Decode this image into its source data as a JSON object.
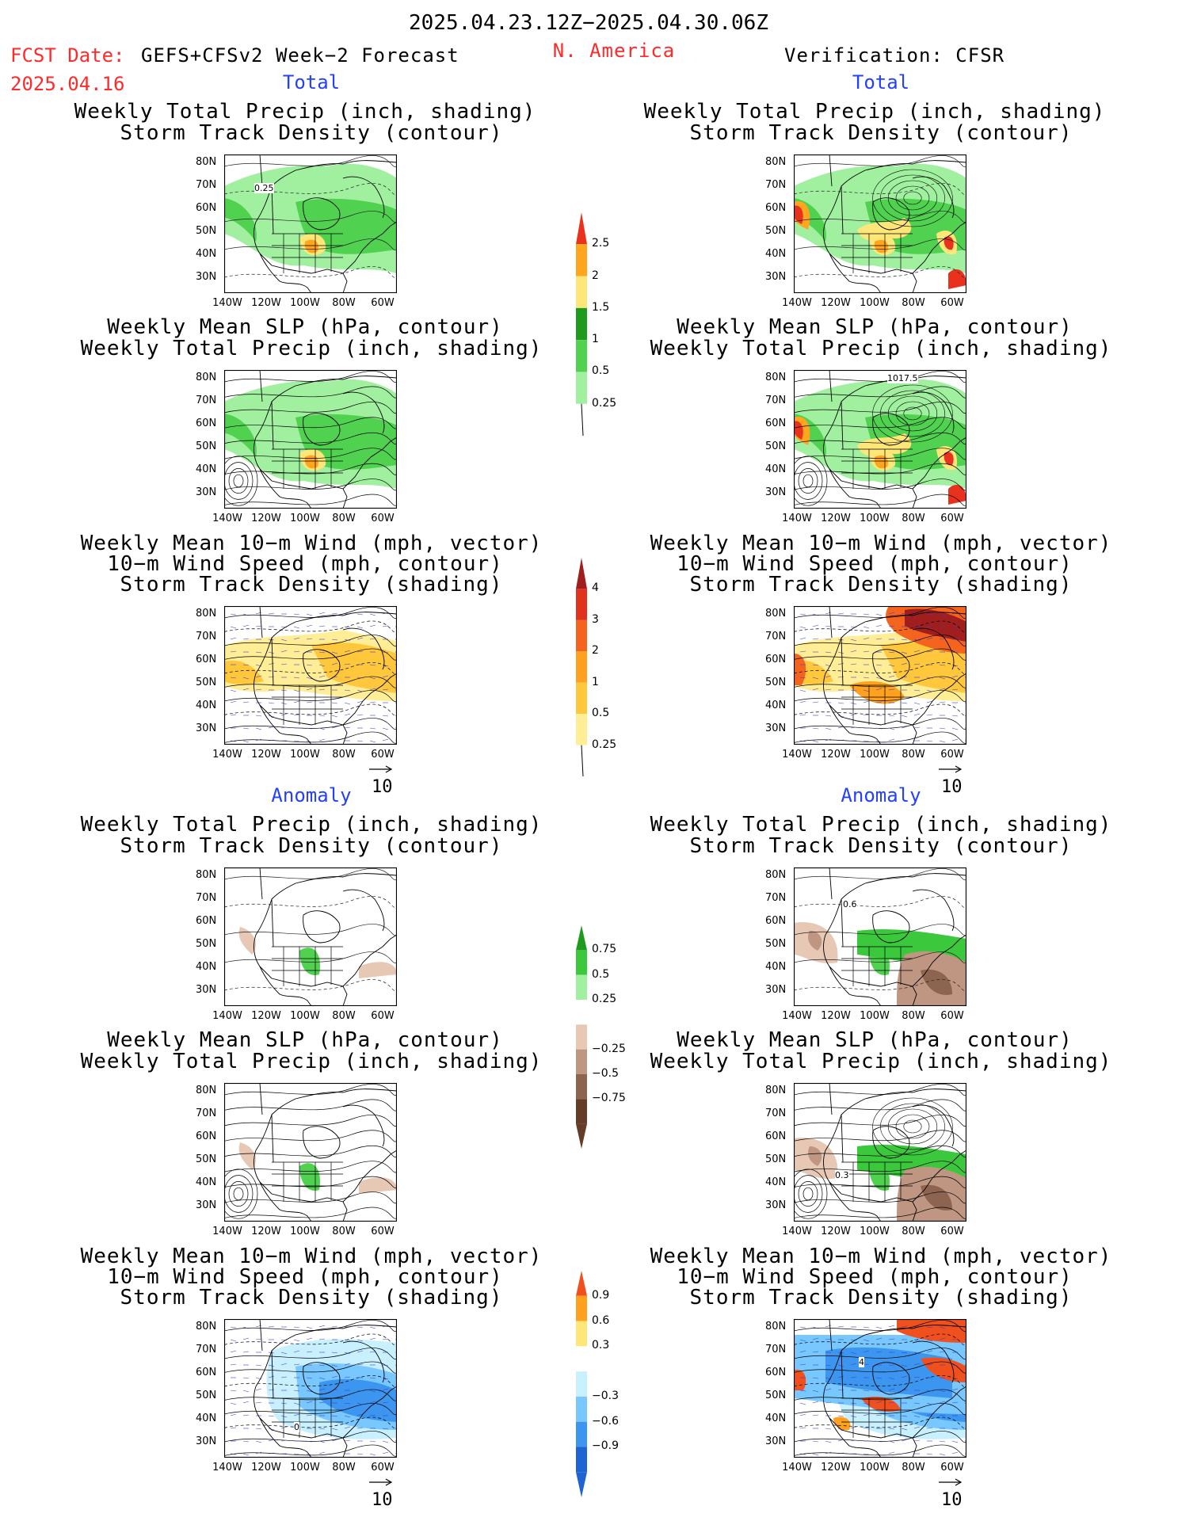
{
  "header": {
    "date_range": "2025.04.23.12Z−2025.04.30.06Z",
    "fcst_label": "FCST Date:",
    "fcst_model": "GEFS+CFSv2 Week−2 Forecast",
    "fcst_date": "2025.04.16",
    "region": "N. America",
    "verification": "Verification: CFSR"
  },
  "sections": {
    "total": "Total",
    "anomaly": "Anomaly"
  },
  "titles": {
    "precip_storm": [
      "Weekly Total Precip (inch, shading)",
      "Storm Track Density (contour)"
    ],
    "slp_precip": [
      "Weekly Mean SLP (hPa, contour)",
      "Weekly Total Precip (inch, shading)"
    ],
    "wind_storm": [
      "Weekly Mean 10−m Wind (mph, vector)",
      "10−m Wind Speed (mph, contour)",
      "Storm Track Density (shading)"
    ]
  },
  "axes": {
    "lat": [
      "80N",
      "70N",
      "60N",
      "50N",
      "40N",
      "30N"
    ],
    "lon": [
      "140W",
      "120W",
      "100W",
      "80W",
      "60W"
    ]
  },
  "vector_ref": "10",
  "colorbars": {
    "precip_total": {
      "labels": [
        "2.5",
        "2",
        "1.5",
        "1",
        "0.5",
        "0.25"
      ],
      "colors": [
        "#e8321e",
        "#ffa51e",
        "#ffe678",
        "#1e9b1e",
        "#50d250",
        "#a0f0a0"
      ]
    },
    "storm_total": {
      "labels": [
        "4",
        "3",
        "2",
        "1",
        "0.5",
        "0.25"
      ],
      "colors": [
        "#a01e1e",
        "#e1321e",
        "#f5641e",
        "#ffa01e",
        "#ffc83c",
        "#ffee96"
      ]
    },
    "precip_anom": {
      "labels": [
        "0.75",
        "0.5",
        "0.25",
        "−0.25",
        "−0.5",
        "−0.75"
      ],
      "colors": [
        "#1e9b1e",
        "#3cc83c",
        "#a0f0a0",
        "#ffffff",
        "#e6c8b4",
        "#be9682",
        "#8c6450",
        "#643c28"
      ]
    },
    "storm_anom": {
      "labels": [
        "0.9",
        "0.6",
        "0.3",
        "−0.3",
        "−0.6",
        "−0.9"
      ],
      "colors": [
        "#f0501e",
        "#ffa01e",
        "#ffe678",
        "#ffffff",
        "#c8f0ff",
        "#78c8ff",
        "#3c96f0",
        "#1e64d2"
      ]
    }
  },
  "map_labels": {
    "f1": "0.25",
    "v2": "1017.5",
    "f6": "0",
    "v4": "0.6",
    "v5": "0.3",
    "v6": "4"
  }
}
